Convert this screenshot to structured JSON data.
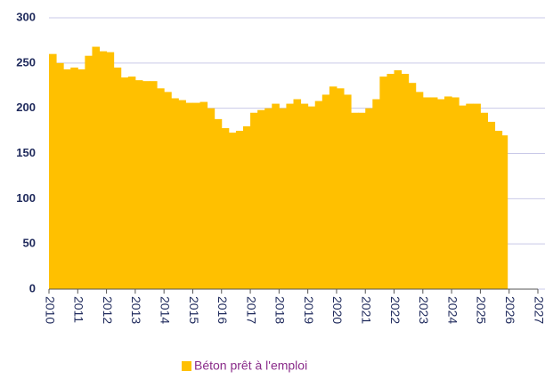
{
  "chart_data": {
    "type": "area",
    "series": [
      {
        "name": "Béton prêt à l'emploi",
        "color": "#ffc000",
        "x": [
          2010.0,
          2010.25,
          2010.5,
          2010.75,
          2011.0,
          2011.25,
          2011.5,
          2011.75,
          2012.0,
          2012.25,
          2012.5,
          2012.75,
          2013.0,
          2013.25,
          2013.5,
          2013.75,
          2014.0,
          2014.25,
          2014.5,
          2014.75,
          2015.0,
          2015.25,
          2015.5,
          2015.75,
          2016.0,
          2016.25,
          2016.5,
          2016.75,
          2017.0,
          2017.25,
          2017.5,
          2017.75,
          2018.0,
          2018.25,
          2018.5,
          2018.75,
          2019.0,
          2019.25,
          2019.5,
          2019.75,
          2020.0,
          2020.25,
          2020.5,
          2020.75,
          2021.0,
          2021.25,
          2021.5,
          2021.75,
          2022.0,
          2022.25,
          2022.5,
          2022.75,
          2023.0,
          2023.25,
          2023.5,
          2023.75,
          2024.0,
          2024.25,
          2024.5,
          2024.75,
          2025.0,
          2025.25,
          2025.5,
          2025.75
        ],
        "values": [
          260,
          250,
          243,
          245,
          243,
          258,
          268,
          263,
          262,
          245,
          234,
          235,
          231,
          230,
          230,
          222,
          218,
          211,
          209,
          206,
          206,
          207,
          200,
          188,
          178,
          173,
          175,
          180,
          195,
          198,
          200,
          205,
          200,
          205,
          210,
          205,
          202,
          208,
          215,
          224,
          222,
          215,
          195,
          195,
          200,
          210,
          235,
          238,
          242,
          238,
          228,
          218,
          212,
          212,
          210,
          213,
          212,
          203,
          205,
          205,
          195,
          185,
          175,
          170
        ]
      }
    ],
    "xlim": [
      2010,
      2027
    ],
    "xticks": [
      2010,
      2011,
      2012,
      2013,
      2014,
      2015,
      2016,
      2017,
      2018,
      2019,
      2020,
      2021,
      2022,
      2023,
      2024,
      2025,
      2026,
      2027
    ],
    "ylim": [
      0,
      300
    ],
    "yticks": [
      0,
      50,
      100,
      150,
      200,
      250,
      300
    ],
    "grid": true,
    "legend": "bottom"
  }
}
